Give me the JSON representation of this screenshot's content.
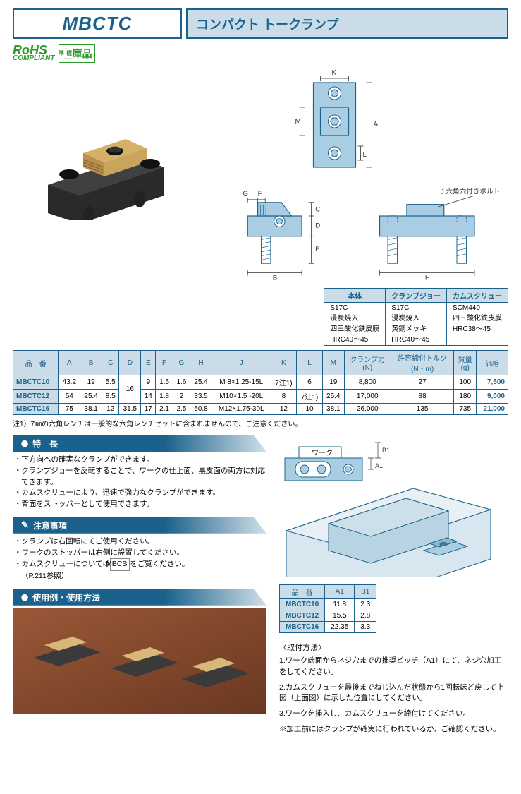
{
  "header": {
    "code": "MBCTC",
    "name": "コンパクト トークランプ"
  },
  "badges": {
    "rohs": "RoHS",
    "rohs_sub": "COMPLIANT",
    "stock": "在庫品"
  },
  "diagram": {
    "colors": {
      "fill": "#a9cde2",
      "stroke": "#1a628c",
      "dim": "#333"
    },
    "dim_labels": [
      "K",
      "M",
      "A",
      "L",
      "G",
      "F",
      "C",
      "D",
      "E",
      "B",
      "H"
    ],
    "bolt_note": "J 六角穴付きボルト"
  },
  "material_table": {
    "headers": [
      "本体",
      "クランプジョー",
      "カムスクリュー"
    ],
    "rows": [
      [
        "S17C",
        "S17C",
        "SCM440"
      ],
      [
        "浸炭焼入",
        "浸炭焼入",
        "四三酸化鉄皮膜"
      ],
      [
        "四三酸化鉄皮膜",
        "黄銅メッキ",
        "HRC38～45"
      ],
      [
        "HRC40～45",
        "HRC40～45",
        ""
      ]
    ]
  },
  "spec_table": {
    "headers": [
      "品　番",
      "A",
      "B",
      "C",
      "D",
      "E",
      "F",
      "G",
      "H",
      "J",
      "K",
      "L",
      "M",
      "クランプ力\n(N)",
      "許容締付トルク\n(N・m)",
      "質量\n(g)",
      "価格"
    ],
    "rows": [
      {
        "pn": "MBCTC10",
        "cells": [
          "43.2",
          "19",
          "5.5",
          "",
          "9",
          "1.5",
          "1.6",
          "25.4",
          "M 8×1.25-15L",
          "7注1)",
          "6",
          "19",
          "8,800",
          "27",
          "100"
        ],
        "price": "7,500"
      },
      {
        "pn": "MBCTC12",
        "cells": [
          "54",
          "25.4",
          "8.5",
          "16",
          "14",
          "1.8",
          "2",
          "33.5",
          "M10×1.5 -20L",
          "8",
          "7注1)",
          "25.4",
          "17,000",
          "88",
          "180"
        ],
        "price": "9,000"
      },
      {
        "pn": "MBCTC16",
        "cells": [
          "75",
          "38.1",
          "12",
          "31.5",
          "17",
          "2.1",
          "2.5",
          "50.8",
          "M12×1.75-30L",
          "12",
          "10",
          "38.1",
          "26,000",
          "135",
          "735"
        ],
        "price": "21,000"
      }
    ],
    "d_merge": "16"
  },
  "note1": "注1）7㎜の六角レンチは一般的な六角レンチセットに含まれませんので、ご注意ください。",
  "features": {
    "title": "特　長",
    "items": [
      "下方向への確実なクランプができます。",
      "クランプジョーを反転することで、ワークの仕上面、黒皮面の両方に対応できます。",
      "カムスクリューにより、迅速で強力なクランプができます。",
      "背面をストッパーとして使用できます。"
    ]
  },
  "caution": {
    "title": "注意事項",
    "items": [
      "クランプは右回転にてご使用ください。",
      "ワークのストッパーは右側に設置してください。",
      "カムスクリューについては[MBCS]をご覧ください。\n（P.211参照）"
    ]
  },
  "usage": {
    "title": "使用例・使用方法"
  },
  "work_label": "ワーク",
  "ab_table": {
    "headers": [
      "品　番",
      "A1",
      "B1"
    ],
    "rows": [
      [
        "MBCTC10",
        "11.8",
        "2.3"
      ],
      [
        "MBCTC12",
        "15.5",
        "2.8"
      ],
      [
        "MBCTC16",
        "22.35",
        "3.3"
      ]
    ]
  },
  "method": {
    "title": "〈取付方法〉",
    "steps": [
      "1.ワーク端面からネジ穴までの推奨ピッチ（A1）にて、ネジ穴加工をしてください。",
      "2.カムスクリューを最後までねじ込んだ状態から1回転ほど戻して上図（上面図）に示した位置にしてください。",
      "3.ワークを挿入し、カムスクリューを締付けてください。",
      "※加工前にはクランプが確実に行われているか、ご確認ください。"
    ]
  }
}
